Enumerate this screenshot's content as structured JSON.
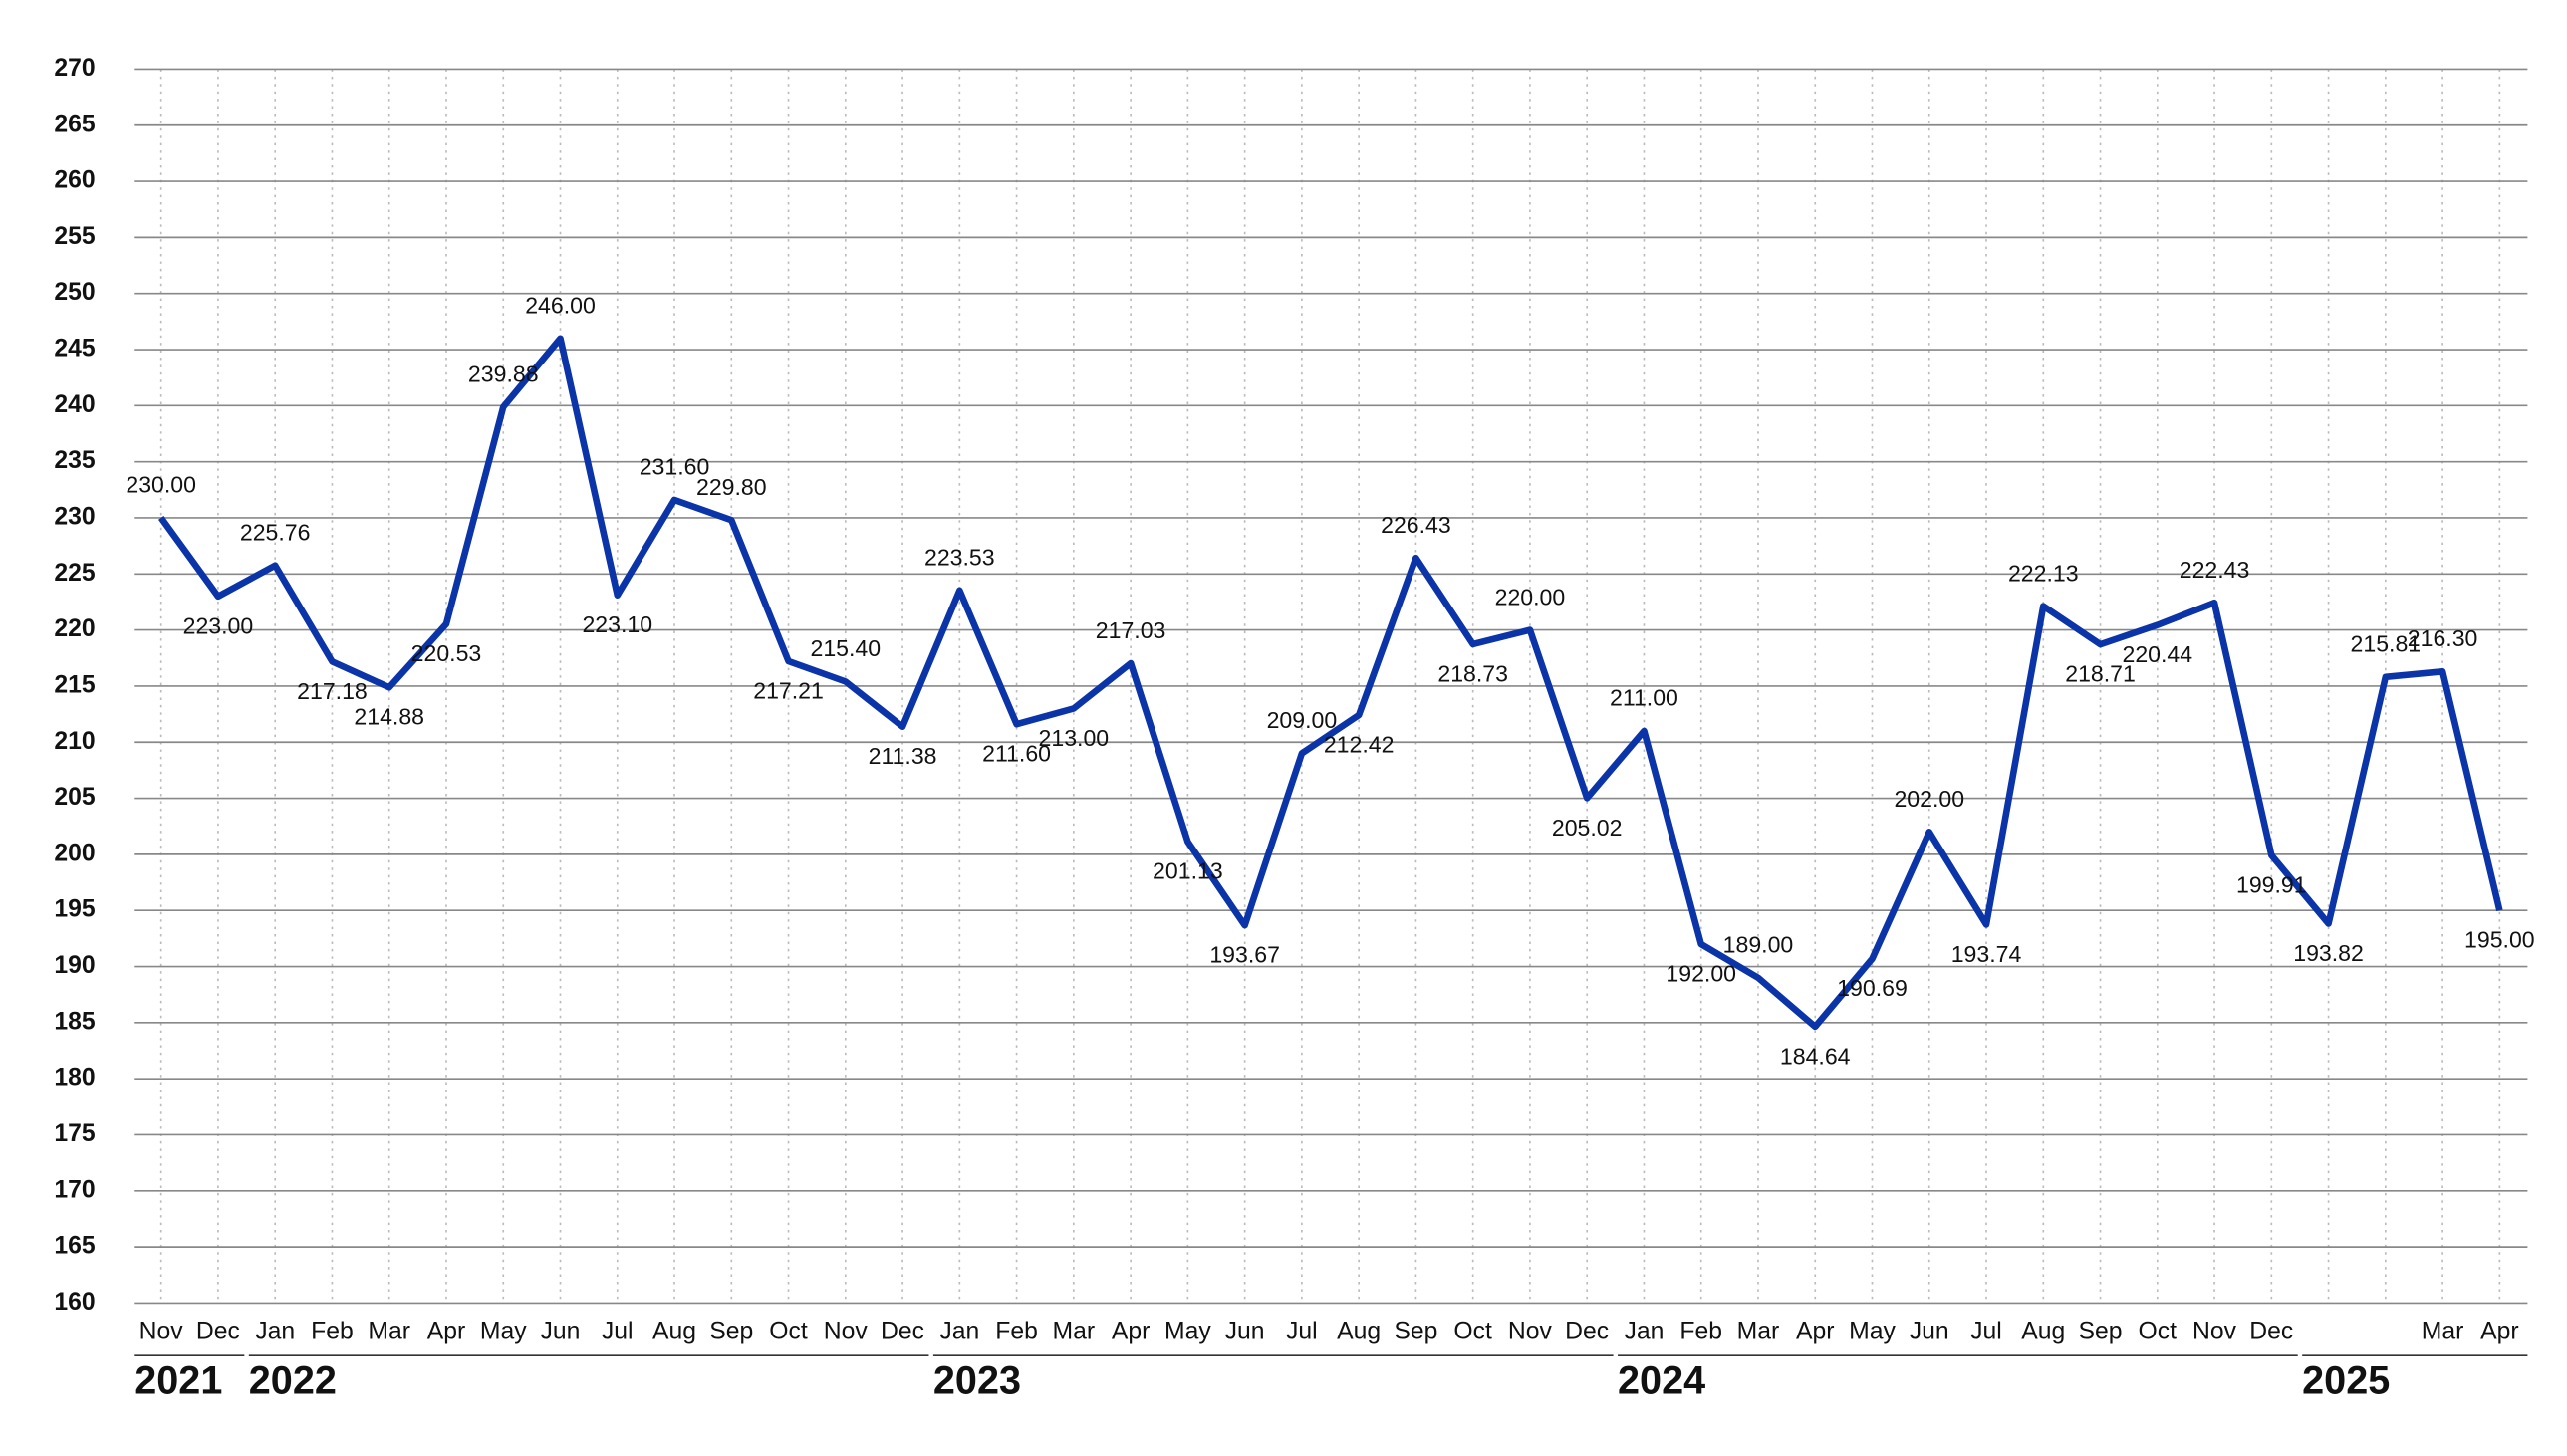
{
  "chart_data": {
    "type": "line",
    "categories": [
      "Nov",
      "Dec",
      "Jan",
      "Feb",
      "Mar",
      "Apr",
      "May",
      "Jun",
      "Jul",
      "Aug",
      "Sep",
      "Oct",
      "Nov",
      "Dec",
      "Jan",
      "Feb",
      "Mar",
      "Apr",
      "May",
      "Jun",
      "Jul",
      "Aug",
      "Sep",
      "Oct",
      "Nov",
      "Dec",
      "Jan",
      "Feb",
      "Mar",
      "Apr",
      "May",
      "Jun",
      "Jul",
      "Aug",
      "Sep",
      "Oct",
      "Nov",
      "Dec",
      null,
      null,
      "Mar",
      "Apr"
    ],
    "years": [
      "2021",
      null,
      "2022",
      null,
      null,
      null,
      null,
      null,
      null,
      null,
      null,
      null,
      null,
      null,
      "2023",
      null,
      null,
      null,
      null,
      null,
      null,
      null,
      null,
      null,
      null,
      null,
      "2024",
      null,
      null,
      null,
      null,
      null,
      null,
      null,
      null,
      null,
      null,
      null,
      "2025",
      null,
      null,
      null
    ],
    "values": [
      230.0,
      223.0,
      225.76,
      217.18,
      214.88,
      220.53,
      239.88,
      246.0,
      223.1,
      231.6,
      229.8,
      217.21,
      215.4,
      211.38,
      223.53,
      211.6,
      213.0,
      217.03,
      201.13,
      193.67,
      209.0,
      212.42,
      226.43,
      218.73,
      220.0,
      205.02,
      211.0,
      192.0,
      189.0,
      184.64,
      190.69,
      202.0,
      193.74,
      222.13,
      218.71,
      220.44,
      222.43,
      199.91,
      193.82,
      215.81,
      216.3,
      195.0
    ],
    "value_labels": [
      "230.00",
      "223.00",
      "225.76",
      "217.18",
      "214.88",
      "220.53",
      "239.88",
      "246.00",
      "223.10",
      "231.60",
      "229.80",
      "217.21",
      "215.40",
      "211.38",
      "223.53",
      "211.60",
      "213.00",
      "217.03",
      "201.13",
      "193.67",
      "209.00",
      "212.42",
      "226.43",
      "218.73",
      "220.00",
      "205.02",
      "211.00",
      "192.00",
      "189.00",
      "184.64",
      "190.69",
      "202.00",
      "193.74",
      "222.13",
      "218.71",
      "220.44",
      "222.43",
      "199.91",
      "193.82",
      "215.81",
      "216.30",
      "195.00"
    ],
    "color": "#0a34a8",
    "ylim": [
      160,
      270
    ],
    "yticks": [
      160,
      165,
      170,
      175,
      180,
      185,
      190,
      195,
      200,
      205,
      210,
      215,
      220,
      225,
      230,
      235,
      240,
      245,
      250,
      255,
      260,
      265,
      270
    ],
    "grid": true
  }
}
